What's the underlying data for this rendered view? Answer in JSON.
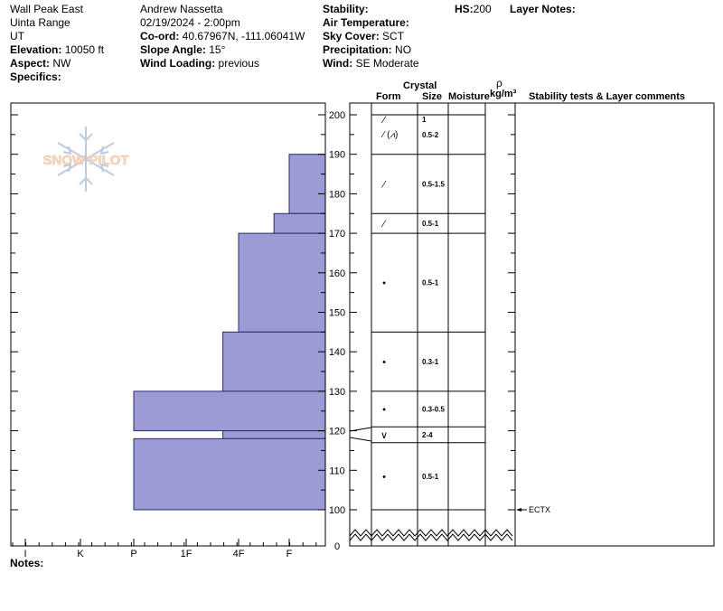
{
  "header": {
    "location": "Wall Peak East",
    "range": "Uinta Range",
    "state": "UT",
    "elevation_label": "Elevation:",
    "elevation": "10050 ft",
    "aspect_label": "Aspect:",
    "aspect": "NW",
    "specifics_label": "Specifics:",
    "observer": "Andrew Nassetta",
    "datetime": "02/19/2024 - 2:00pm",
    "coord_label": "Co-ord:",
    "coord": "40.67967N, -111.06041W",
    "slope_label": "Slope Angle:",
    "slope": "15°",
    "wind_loading_label": "Wind Loading:",
    "wind_loading": "previous",
    "stability_label": "Stability:",
    "air_temp_label": "Air Temperature:",
    "sky_label": "Sky Cover:",
    "sky": "SCT",
    "precip_label": "Precipitation:",
    "precip": "NO",
    "wind_label": "Wind:",
    "wind": "SE Moderate",
    "hs_label": "HS:",
    "hs": "200",
    "layer_notes_label": "Layer Notes:"
  },
  "columns": {
    "crystal": "Crystal",
    "form": "Form",
    "size": "Size",
    "moisture": "Moisture",
    "rho": "ρ",
    "density": "kg/m³",
    "stability": "Stability tests & Layer comments"
  },
  "watermark": "SNOW PILOT",
  "notes_label": "Notes:",
  "chart_data": {
    "type": "bar",
    "orientation": "horizontal",
    "description_axis": "snow height (cm)",
    "y_ticks": [
      200,
      190,
      180,
      170,
      160,
      150,
      140,
      130,
      120,
      110,
      100,
      0
    ],
    "x_ticks": [
      "I",
      "K",
      "P",
      "1F",
      "4F",
      "F"
    ],
    "hardness_layers": [
      {
        "top": 200,
        "bottom": 190,
        "hardness_index": 4.0
      },
      {
        "top": 190,
        "bottom": 175,
        "hardness_index": 3.0
      },
      {
        "top": 175,
        "bottom": 170,
        "hardness_index": 2.7
      },
      {
        "top": 170,
        "bottom": 145,
        "hardness_index": 2.0
      },
      {
        "top": 145,
        "bottom": 130,
        "hardness_index": 1.7
      },
      {
        "top": 130,
        "bottom": 120,
        "hardness_index": 0.0
      },
      {
        "top": 120,
        "bottom": 118,
        "hardness_index": 1.7
      },
      {
        "top": 118,
        "bottom": 100,
        "hardness_index": 0.0
      }
    ],
    "crystal_layers": [
      {
        "top": 200,
        "bottom": 190,
        "form": "⁄",
        "size": "1"
      },
      {
        "top": 190,
        "bottom": 175,
        "form": "⁄",
        "size": "0.5-1.5"
      },
      {
        "top": 175,
        "bottom": 170,
        "form": "⁄",
        "size": "0.5-1"
      },
      {
        "top": 170,
        "bottom": 145,
        "form": "•",
        "size": "0.5-1"
      },
      {
        "top": 145,
        "bottom": 130,
        "form": "•",
        "size": "0.3-1"
      },
      {
        "top": 130,
        "bottom": 121,
        "form": "•",
        "size": "0.3-0.5"
      },
      {
        "top": 121,
        "bottom": 117,
        "form": "∨",
        "size": "2-4"
      },
      {
        "top": 117,
        "bottom": 100,
        "form": "•",
        "size": "0.5-1"
      }
    ],
    "extra_label": {
      "height": 195,
      "form": "⁄ (⩘)",
      "size": "0.5-2"
    },
    "stability_tests": [
      {
        "height": 100,
        "label": "ECTX"
      }
    ]
  }
}
